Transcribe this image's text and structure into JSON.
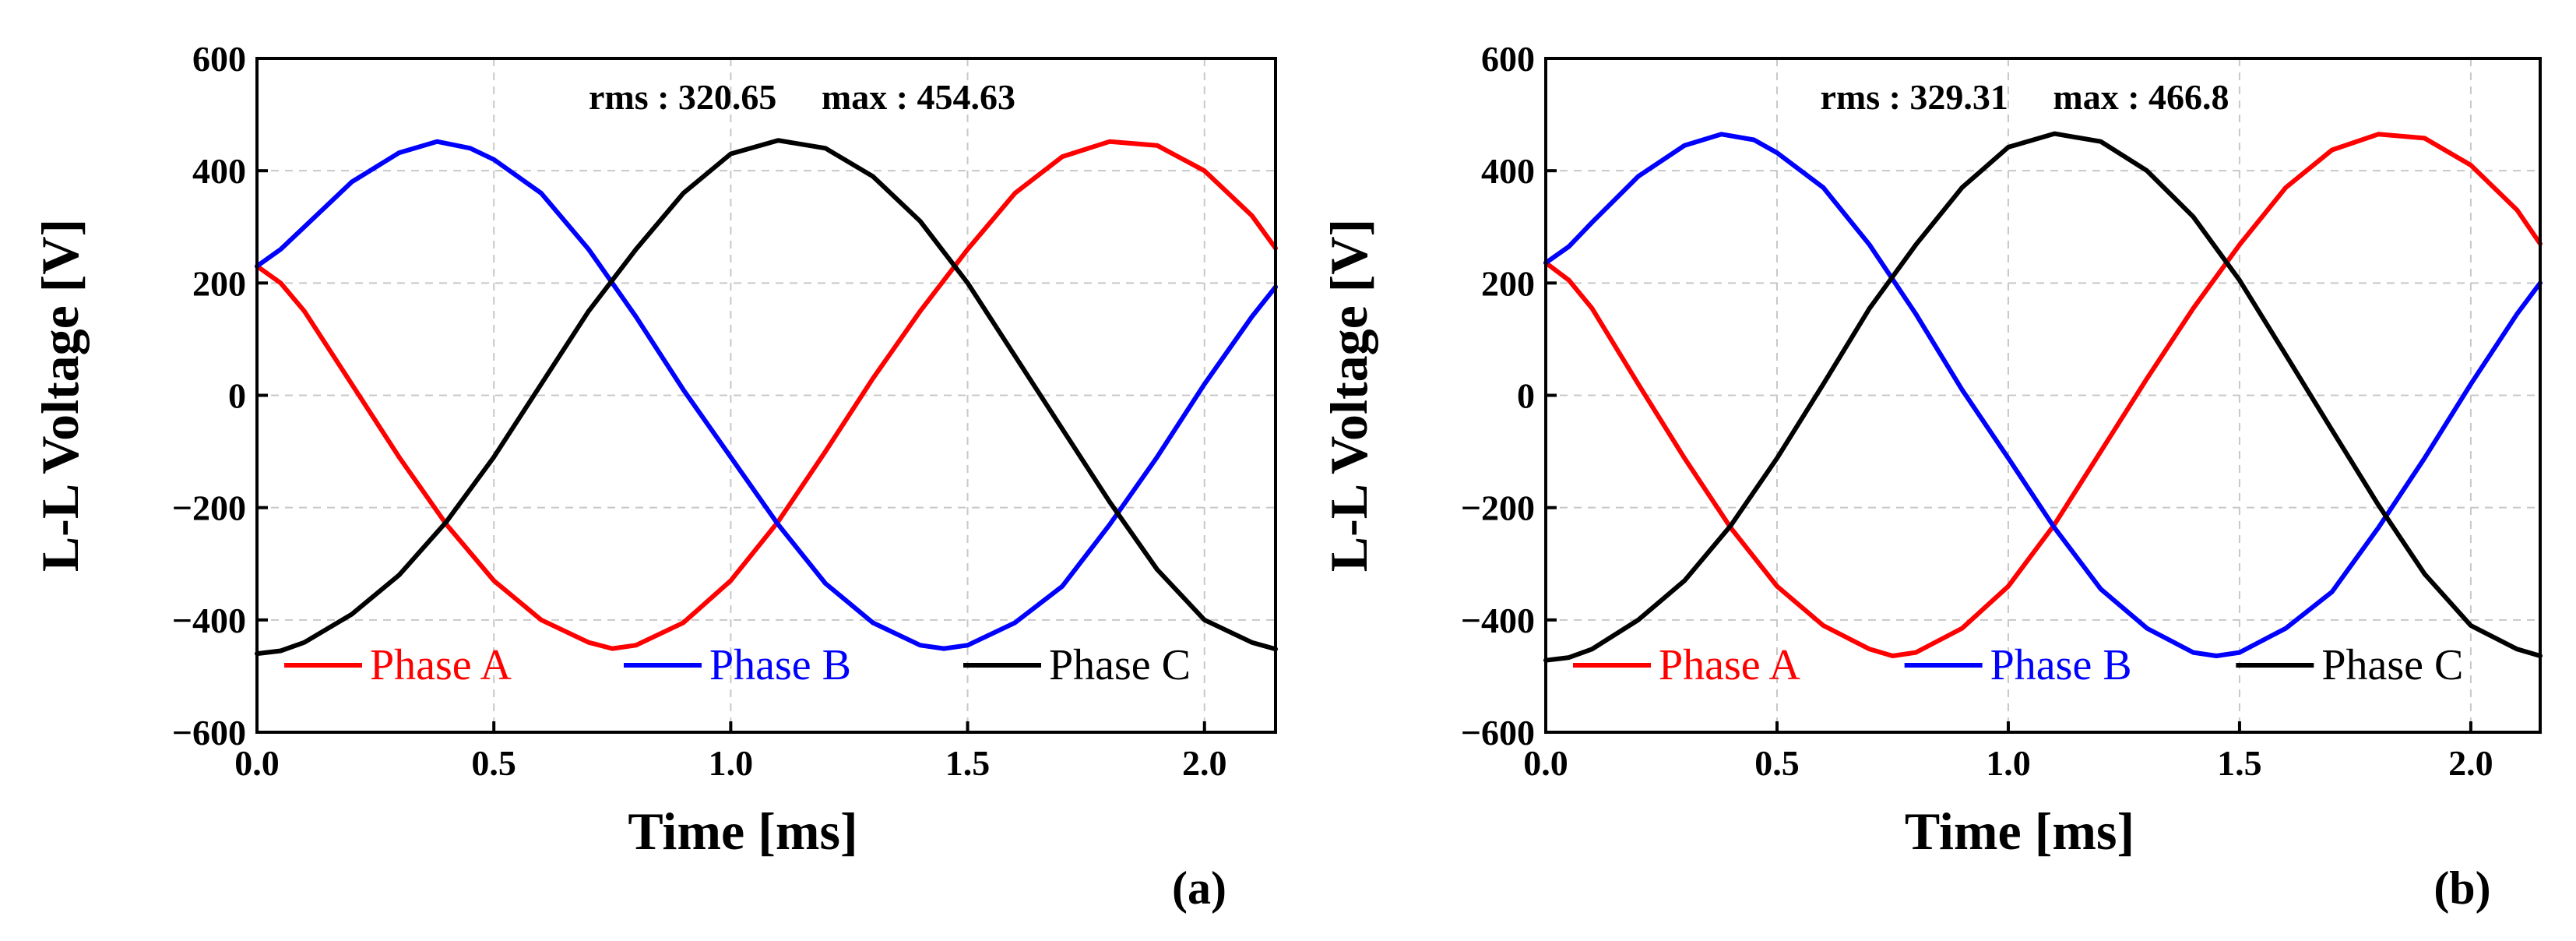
{
  "chart_data": [
    {
      "type": "line",
      "panel_label": "(a)",
      "xlabel": "Time [ms]",
      "ylabel": "L-L Voltage [V]",
      "xlim": [
        0,
        2.15
      ],
      "ylim": [
        -600,
        600
      ],
      "x_ticks": [
        0,
        0.5,
        1,
        1.5,
        2
      ],
      "x_tick_labels": [
        "0.0",
        "0.5",
        "1.0",
        "1.5",
        "2.0"
      ],
      "y_ticks": [
        -600,
        -400,
        -200,
        0,
        200,
        400,
        600
      ],
      "y_tick_labels": [
        "−600",
        "−400",
        "−200",
        "0",
        "200",
        "400",
        "600"
      ],
      "grid": true,
      "annotation": "rms : 320.65     max : 454.63",
      "legend": "bottom",
      "series": [
        {
          "name": "Phase A",
          "color": "#ff0000",
          "x": [
            0,
            0.05,
            0.1,
            0.2,
            0.3,
            0.4,
            0.5,
            0.6,
            0.7,
            0.75,
            0.8,
            0.9,
            1.0,
            1.1,
            1.2,
            1.3,
            1.4,
            1.5,
            1.6,
            1.7,
            1.8,
            1.9,
            2.0,
            2.1,
            2.15
          ],
          "y": [
            230,
            200,
            150,
            20,
            -110,
            -230,
            -330,
            -400,
            -440,
            -451,
            -445,
            -405,
            -330,
            -225,
            -100,
            30,
            150,
            260,
            360,
            425,
            452,
            445,
            400,
            320,
            262
          ]
        },
        {
          "name": "Phase B",
          "color": "#0000ff",
          "x": [
            0,
            0.05,
            0.1,
            0.2,
            0.3,
            0.38,
            0.45,
            0.5,
            0.6,
            0.7,
            0.8,
            0.9,
            1.0,
            1.1,
            1.2,
            1.3,
            1.4,
            1.45,
            1.5,
            1.6,
            1.7,
            1.8,
            1.9,
            2.0,
            2.1,
            2.15
          ],
          "y": [
            230,
            260,
            300,
            380,
            432,
            452,
            440,
            420,
            360,
            260,
            140,
            10,
            -110,
            -230,
            -335,
            -405,
            -445,
            -451,
            -445,
            -405,
            -340,
            -230,
            -110,
            20,
            140,
            193
          ]
        },
        {
          "name": "Phase C",
          "color": "#000000",
          "x": [
            0,
            0.05,
            0.1,
            0.2,
            0.3,
            0.4,
            0.5,
            0.6,
            0.7,
            0.8,
            0.9,
            1.0,
            1.1,
            1.2,
            1.3,
            1.4,
            1.5,
            1.6,
            1.7,
            1.8,
            1.9,
            2.0,
            2.1,
            2.15
          ],
          "y": [
            -460,
            -455,
            -440,
            -390,
            -320,
            -225,
            -110,
            20,
            150,
            260,
            360,
            430,
            454,
            440,
            390,
            310,
            200,
            70,
            -60,
            -190,
            -310,
            -400,
            -440,
            -452
          ]
        }
      ]
    },
    {
      "type": "line",
      "panel_label": "(b)",
      "xlabel": "Time [ms]",
      "ylabel": "L-L Voltage [V]",
      "xlim": [
        0,
        2.15
      ],
      "ylim": [
        -600,
        600
      ],
      "x_ticks": [
        0,
        0.5,
        1,
        1.5,
        2
      ],
      "x_tick_labels": [
        "0.0",
        "0.5",
        "1.0",
        "1.5",
        "2.0"
      ],
      "y_ticks": [
        -600,
        -400,
        -200,
        0,
        200,
        400,
        600
      ],
      "y_tick_labels": [
        "−600",
        "−400",
        "−200",
        "0",
        "200",
        "400",
        "600"
      ],
      "grid": true,
      "annotation": "rms : 329.31     max : 466.8",
      "legend": "bottom",
      "series": [
        {
          "name": "Phase A",
          "color": "#ff0000",
          "x": [
            0,
            0.05,
            0.1,
            0.2,
            0.3,
            0.4,
            0.5,
            0.6,
            0.7,
            0.75,
            0.8,
            0.9,
            1.0,
            1.1,
            1.2,
            1.3,
            1.4,
            1.5,
            1.6,
            1.7,
            1.8,
            1.9,
            2.0,
            2.1,
            2.15
          ],
          "y": [
            236,
            205,
            155,
            20,
            -112,
            -236,
            -340,
            -410,
            -452,
            -464,
            -458,
            -415,
            -340,
            -230,
            -100,
            30,
            155,
            268,
            370,
            437,
            465,
            458,
            410,
            330,
            270
          ]
        },
        {
          "name": "Phase B",
          "color": "#0000ff",
          "x": [
            0,
            0.05,
            0.1,
            0.2,
            0.3,
            0.38,
            0.45,
            0.5,
            0.6,
            0.7,
            0.8,
            0.9,
            1.0,
            1.1,
            1.2,
            1.3,
            1.4,
            1.45,
            1.5,
            1.6,
            1.7,
            1.8,
            1.9,
            2.0,
            2.1,
            2.15
          ],
          "y": [
            236,
            265,
            308,
            390,
            445,
            465,
            455,
            432,
            370,
            268,
            145,
            10,
            -112,
            -236,
            -345,
            -415,
            -458,
            -464,
            -458,
            -415,
            -350,
            -236,
            -112,
            20,
            145,
            200
          ]
        },
        {
          "name": "Phase C",
          "color": "#000000",
          "x": [
            0,
            0.05,
            0.1,
            0.2,
            0.3,
            0.4,
            0.5,
            0.6,
            0.7,
            0.8,
            0.9,
            1.0,
            1.1,
            1.2,
            1.3,
            1.4,
            1.5,
            1.6,
            1.7,
            1.8,
            1.9,
            2.0,
            2.1,
            2.15
          ],
          "y": [
            -472,
            -467,
            -452,
            -400,
            -330,
            -232,
            -112,
            20,
            155,
            268,
            370,
            442,
            466,
            452,
            400,
            318,
            205,
            72,
            -62,
            -195,
            -318,
            -410,
            -452,
            -464
          ]
        }
      ]
    }
  ]
}
